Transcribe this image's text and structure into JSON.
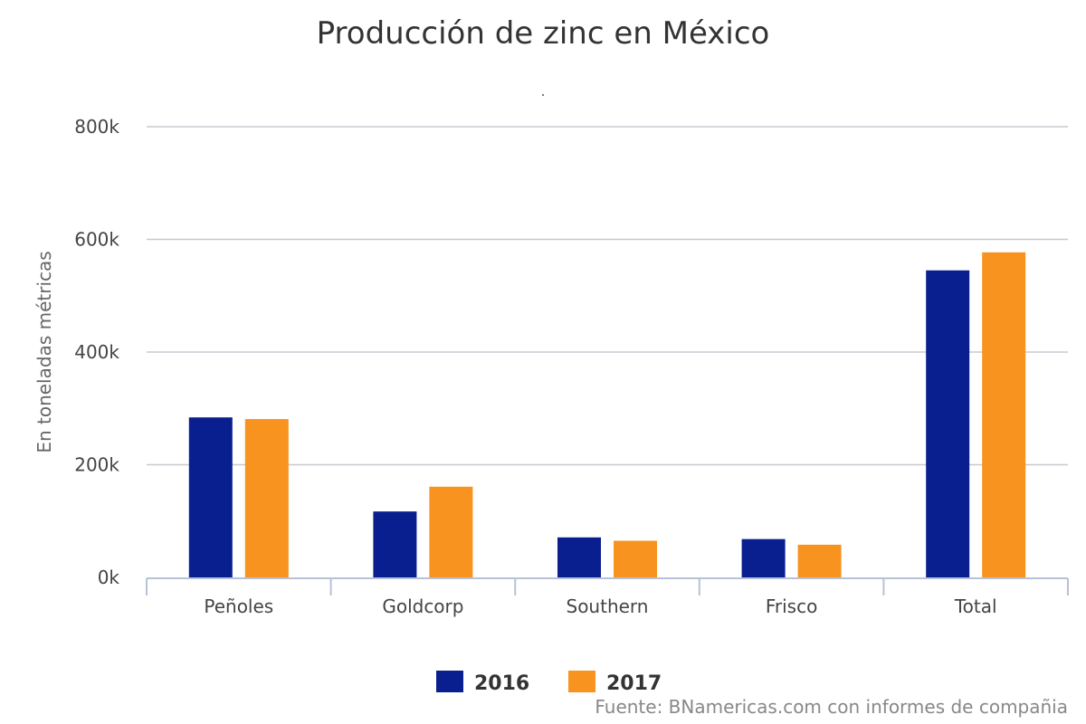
{
  "chart_data": {
    "type": "bar",
    "title": "Producción de zinc en México",
    "subtitle": ".",
    "ylabel": "En toneladas métricas",
    "xlabel": "",
    "ylim": [
      0,
      800000
    ],
    "yticks": [
      0,
      200000,
      400000,
      600000,
      800000
    ],
    "ytick_labels": [
      "0k",
      "200k",
      "400k",
      "600k",
      "800k"
    ],
    "categories": [
      "Peñoles",
      "Goldcorp",
      "Southern",
      "Frisco",
      "Total"
    ],
    "series": [
      {
        "name": "2016",
        "color": "#0a1f8f",
        "values": [
          284000,
          117000,
          71000,
          68000,
          545000
        ]
      },
      {
        "name": "2017",
        "color": "#f7931e",
        "values": [
          281000,
          161000,
          65000,
          58000,
          577000
        ]
      }
    ],
    "grid": true,
    "legend_position": "bottom-center",
    "source": "Fuente: BNamericas.com con informes de compañia"
  }
}
